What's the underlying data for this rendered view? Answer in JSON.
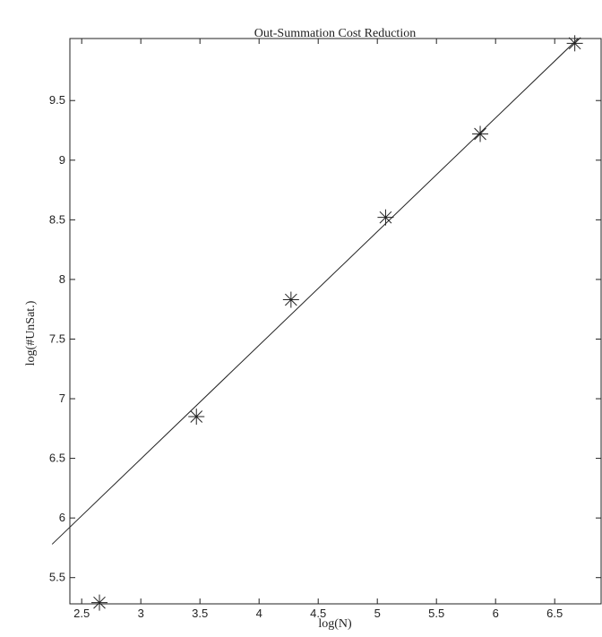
{
  "chart_data": {
    "type": "scatter",
    "title": "Out-Summation Cost Reduction",
    "xlabel": "log(N)",
    "ylabel": "log(#UnSat.)",
    "xlim": [
      2.4,
      6.9
    ],
    "ylim": [
      5.28,
      10.02
    ],
    "x_ticks": [
      "2.5",
      "3",
      "3.5",
      "4",
      "4.5",
      "5",
      "5.5",
      "6",
      "6.5"
    ],
    "y_ticks": [
      "5.5",
      "6",
      "6.5",
      "7",
      "7.5",
      "8",
      "8.5",
      "9",
      "9.5"
    ],
    "grid": false,
    "series": [
      {
        "marker": "asterisk",
        "x": [
          2.65,
          3.47,
          4.27,
          5.07,
          5.87,
          6.67
        ],
        "y": [
          5.29,
          6.85,
          7.83,
          8.52,
          9.22,
          9.98
        ]
      }
    ],
    "fit_line": {
      "x": [
        2.25,
        6.95
      ],
      "y": [
        5.78,
        10.26
      ]
    },
    "colors": {
      "axis": "#222222",
      "marker": "#222222",
      "line": "#222222",
      "background": "#ffffff"
    }
  }
}
